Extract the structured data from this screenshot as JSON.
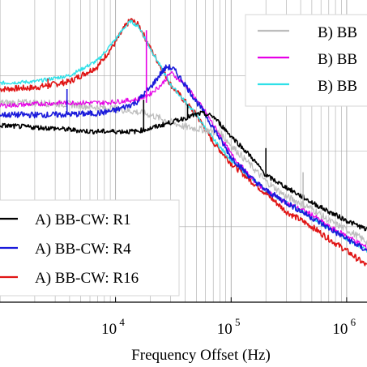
{
  "chart_data": {
    "type": "line",
    "xscale": "log",
    "xlabel": "Frequency Offset (Hz)",
    "xlim": [
      1000,
      1500000
    ],
    "ylim": [
      0,
      1
    ],
    "grid": true,
    "x_ticks": [
      {
        "value": 10000,
        "base": "10",
        "exp": "4"
      },
      {
        "value": 100000,
        "base": "10",
        "exp": "5"
      },
      {
        "value": 1000000,
        "base": "10",
        "exp": "6"
      }
    ],
    "legends": [
      {
        "placement": "top-right",
        "entries": [
          {
            "label": "B) BB",
            "color": "#bdbdbd"
          },
          {
            "label": "B) BB",
            "color": "#e600e6"
          },
          {
            "label": "B) BB",
            "color": "#2fe0e8"
          }
        ]
      },
      {
        "placement": "bottom-left",
        "entries": [
          {
            "label": "A) BB-CW: R1",
            "color": "#000000"
          },
          {
            "label": "A) BB-CW: R4",
            "color": "#1a1adb"
          },
          {
            "label": "A) BB-CW: R16",
            "color": "#e01414"
          }
        ]
      }
    ],
    "series": [
      {
        "color": "#e01414",
        "width": 1.6,
        "noise": 0.01,
        "points": [
          [
            1000,
            0.705
          ],
          [
            2000,
            0.71
          ],
          [
            4000,
            0.73
          ],
          [
            7000,
            0.78
          ],
          [
            10000,
            0.86
          ],
          [
            12000,
            0.91
          ],
          [
            13500,
            0.935
          ],
          [
            16000,
            0.915
          ],
          [
            20000,
            0.84
          ],
          [
            30000,
            0.72
          ],
          [
            50000,
            0.62
          ],
          [
            70000,
            0.53
          ],
          [
            100000,
            0.46
          ],
          [
            150000,
            0.4
          ],
          [
            200000,
            0.36
          ],
          [
            300000,
            0.3
          ],
          [
            500000,
            0.25
          ],
          [
            700000,
            0.21
          ],
          [
            1000000,
            0.17
          ],
          [
            1500000,
            0.12
          ]
        ]
      },
      {
        "color": "#2fe0e8",
        "width": 1.4,
        "noise": 0.006,
        "points": [
          [
            1000,
            0.725
          ],
          [
            2000,
            0.73
          ],
          [
            4000,
            0.75
          ],
          [
            7000,
            0.8
          ],
          [
            10000,
            0.87
          ],
          [
            12000,
            0.91
          ],
          [
            13500,
            0.93
          ],
          [
            16000,
            0.91
          ],
          [
            20000,
            0.84
          ],
          [
            30000,
            0.72
          ],
          [
            50000,
            0.62
          ],
          [
            70000,
            0.54
          ],
          [
            100000,
            0.47
          ],
          [
            150000,
            0.41
          ],
          [
            200000,
            0.37
          ],
          [
            300000,
            0.33
          ],
          [
            500000,
            0.28
          ],
          [
            700000,
            0.245
          ],
          [
            1000000,
            0.21
          ],
          [
            1500000,
            0.17
          ]
        ]
      },
      {
        "color": "#bdbdbd",
        "width": 1.2,
        "noise": 0.012,
        "points": [
          [
            1000,
            0.66
          ],
          [
            2000,
            0.66
          ],
          [
            4000,
            0.655
          ],
          [
            7000,
            0.645
          ],
          [
            10000,
            0.64
          ],
          [
            15000,
            0.63
          ],
          [
            20000,
            0.62
          ],
          [
            40000,
            0.58
          ],
          [
            60000,
            0.57
          ],
          [
            80000,
            0.56
          ],
          [
            100000,
            0.52
          ],
          [
            150000,
            0.45
          ],
          [
            200000,
            0.4
          ],
          [
            300000,
            0.35
          ],
          [
            500000,
            0.31
          ],
          [
            700000,
            0.27
          ],
          [
            1000000,
            0.24
          ],
          [
            1500000,
            0.2
          ]
        ]
      },
      {
        "color": "#e600e6",
        "width": 1.2,
        "noise": 0.008,
        "points": [
          [
            1000,
            0.65
          ],
          [
            3500,
            0.66
          ],
          [
            8000,
            0.66
          ],
          [
            15000,
            0.67
          ],
          [
            18000,
            0.68
          ],
          [
            20000,
            0.69
          ],
          [
            25000,
            0.72
          ],
          [
            30000,
            0.76
          ],
          [
            40000,
            0.72
          ],
          [
            60000,
            0.63
          ],
          [
            100000,
            0.49
          ],
          [
            150000,
            0.41
          ],
          [
            200000,
            0.37
          ],
          [
            300000,
            0.33
          ],
          [
            500000,
            0.29
          ],
          [
            700000,
            0.25
          ],
          [
            1000000,
            0.22
          ],
          [
            1500000,
            0.18
          ]
        ]
      },
      {
        "color": "#1a1adb",
        "width": 1.6,
        "noise": 0.01,
        "points": [
          [
            1000,
            0.62
          ],
          [
            3000,
            0.62
          ],
          [
            7000,
            0.625
          ],
          [
            10000,
            0.635
          ],
          [
            15000,
            0.66
          ],
          [
            20000,
            0.71
          ],
          [
            25000,
            0.76
          ],
          [
            28000,
            0.78
          ],
          [
            32000,
            0.77
          ],
          [
            40000,
            0.72
          ],
          [
            60000,
            0.62
          ],
          [
            100000,
            0.48
          ],
          [
            150000,
            0.41
          ],
          [
            200000,
            0.37
          ],
          [
            300000,
            0.33
          ],
          [
            500000,
            0.28
          ],
          [
            700000,
            0.245
          ],
          [
            1000000,
            0.21
          ],
          [
            1500000,
            0.17
          ]
        ]
      },
      {
        "color": "#000000",
        "width": 1.6,
        "noise": 0.008,
        "points": [
          [
            1000,
            0.585
          ],
          [
            3000,
            0.575
          ],
          [
            6000,
            0.565
          ],
          [
            10000,
            0.565
          ],
          [
            15000,
            0.565
          ],
          [
            20000,
            0.575
          ],
          [
            30000,
            0.595
          ],
          [
            40000,
            0.61
          ],
          [
            55000,
            0.625
          ],
          [
            70000,
            0.615
          ],
          [
            100000,
            0.55
          ],
          [
            150000,
            0.48
          ],
          [
            200000,
            0.42
          ],
          [
            300000,
            0.38
          ],
          [
            500000,
            0.33
          ],
          [
            700000,
            0.3
          ],
          [
            1000000,
            0.27
          ],
          [
            1500000,
            0.24
          ]
        ]
      }
    ],
    "spikes": [
      {
        "x": 18500,
        "y_from": 0.66,
        "y_to": 0.9,
        "color": "#e600e6"
      },
      {
        "x": 3800,
        "y_from": 0.625,
        "y_to": 0.705,
        "color": "#1a1adb"
      },
      {
        "x": 17500,
        "y_from": 0.565,
        "y_to": 0.67,
        "color": "#000000"
      },
      {
        "x": 42000,
        "y_from": 0.605,
        "y_to": 0.655,
        "color": "#000000"
      },
      {
        "x": 200000,
        "y_from": 0.42,
        "y_to": 0.51,
        "color": "#000000"
      },
      {
        "x": 420000,
        "y_from": 0.31,
        "y_to": 0.43,
        "color": "#bdbdbd"
      },
      {
        "x": 2600,
        "y_from": 0.705,
        "y_to": 0.74,
        "color": "#e01414"
      }
    ]
  }
}
